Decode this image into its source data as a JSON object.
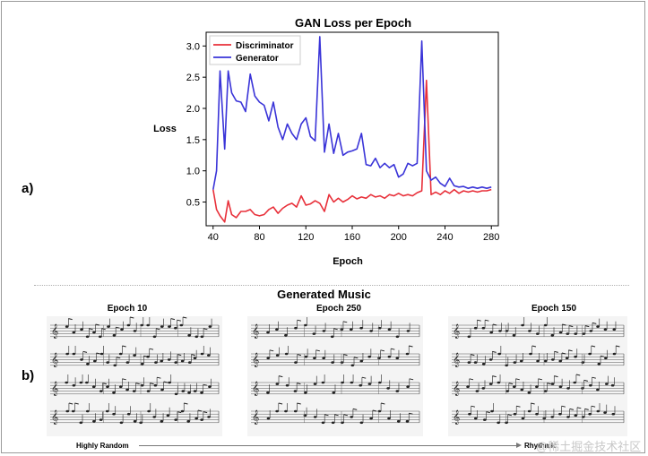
{
  "chart_data": {
    "type": "line",
    "title": "GAN Loss per Epoch",
    "xlabel": "Epoch",
    "ylabel": "Loss",
    "xlim": [
      34,
      286
    ],
    "ylim": [
      0.12,
      3.22
    ],
    "xticks": [
      40,
      80,
      120,
      160,
      200,
      240,
      280
    ],
    "yticks": [
      0.5,
      1.0,
      1.5,
      2.0,
      2.5,
      3.0
    ],
    "ytick_labels": [
      "0.5",
      "1.0",
      "1.5",
      "2.0",
      "2.5",
      "3.0"
    ],
    "grid": false,
    "legend": "top-left",
    "x": [
      40,
      43,
      46,
      50,
      53,
      56,
      60,
      64,
      68,
      72,
      76,
      80,
      84,
      88,
      92,
      96,
      100,
      104,
      108,
      112,
      116,
      120,
      124,
      128,
      132,
      136,
      140,
      144,
      148,
      152,
      156,
      160,
      164,
      168,
      172,
      176,
      180,
      184,
      188,
      192,
      196,
      200,
      204,
      208,
      212,
      216,
      220,
      224,
      228,
      232,
      236,
      240,
      244,
      248,
      252,
      256,
      260,
      264,
      268,
      272,
      276,
      280
    ],
    "series": [
      {
        "name": "Discriminator",
        "color": "#e8303a",
        "values": [
          0.7,
          0.38,
          0.28,
          0.18,
          0.52,
          0.3,
          0.25,
          0.35,
          0.35,
          0.38,
          0.3,
          0.28,
          0.3,
          0.38,
          0.42,
          0.32,
          0.4,
          0.45,
          0.48,
          0.42,
          0.6,
          0.45,
          0.47,
          0.52,
          0.48,
          0.35,
          0.62,
          0.5,
          0.56,
          0.5,
          0.54,
          0.6,
          0.55,
          0.58,
          0.56,
          0.62,
          0.58,
          0.6,
          0.56,
          0.62,
          0.6,
          0.64,
          0.6,
          0.62,
          0.6,
          0.65,
          0.68,
          2.45,
          0.62,
          0.66,
          0.62,
          0.68,
          0.64,
          0.7,
          0.64,
          0.68,
          0.66,
          0.68,
          0.66,
          0.68,
          0.68,
          0.7
        ]
      },
      {
        "name": "Generator",
        "color": "#3a34d8",
        "values": [
          0.7,
          1.0,
          2.6,
          1.35,
          2.6,
          2.25,
          2.12,
          2.1,
          1.95,
          2.55,
          2.2,
          2.1,
          2.05,
          1.8,
          2.1,
          1.7,
          1.5,
          1.75,
          1.6,
          1.5,
          1.75,
          1.85,
          1.55,
          1.48,
          3.15,
          1.3,
          1.75,
          1.28,
          1.6,
          1.25,
          1.3,
          1.32,
          1.35,
          1.6,
          1.1,
          1.08,
          1.2,
          1.05,
          1.12,
          1.05,
          1.1,
          0.9,
          0.95,
          1.12,
          1.08,
          1.12,
          3.08,
          1.0,
          0.85,
          0.9,
          0.8,
          0.75,
          0.88,
          0.76,
          0.74,
          0.75,
          0.72,
          0.74,
          0.72,
          0.74,
          0.72,
          0.74
        ]
      }
    ]
  },
  "panel_labels": {
    "a": "a)",
    "b": "b)"
  },
  "music": {
    "title": "Generated Music",
    "sheets": [
      {
        "label": "Epoch 10"
      },
      {
        "label": "Epoch 250"
      },
      {
        "label": "Epoch 150"
      }
    ],
    "axis_left": "Highly Random",
    "axis_right": "Rhythmic"
  },
  "watermark": "@稀土掘金技术社区"
}
